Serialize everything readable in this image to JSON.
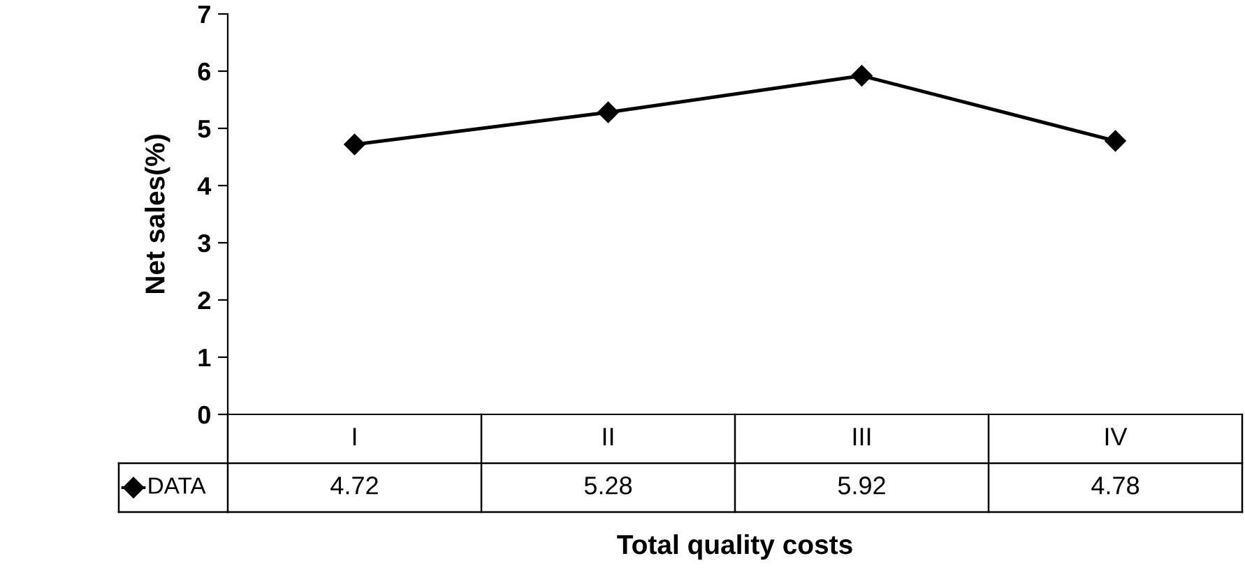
{
  "chart_data": {
    "type": "line",
    "xlabel": "Total quality costs",
    "ylabel": "Net sales(%)",
    "categories": [
      "I",
      "II",
      "III",
      "IV"
    ],
    "series": [
      {
        "name": "DATA",
        "color": "#000000",
        "values": [
          4.72,
          5.28,
          5.92,
          4.78
        ]
      }
    ],
    "ylim": [
      0,
      7
    ],
    "yticks": [
      0,
      1,
      2,
      3,
      4,
      5,
      6,
      7
    ],
    "marker": "diamond",
    "line_style": "solid",
    "grid": false,
    "legend": "bottom",
    "data_labels": true
  }
}
